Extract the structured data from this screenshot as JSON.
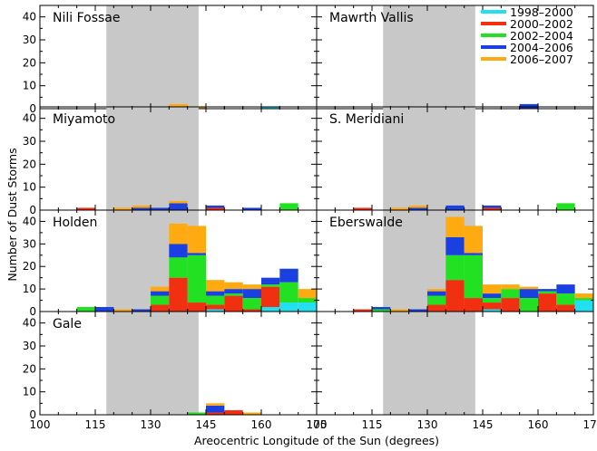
{
  "chart_data": {
    "type": "bar",
    "stacked": true,
    "xlabel": "Areocentric Longitude of the Sun (degrees)",
    "ylabel": "Number of Dust Storms",
    "xlim": [
      100,
      175
    ],
    "ylim": [
      0,
      45
    ],
    "bin_width": 5,
    "x_ticks": [
      100,
      115,
      130,
      145,
      160,
      175
    ],
    "x_tick_labels_left": [
      "100",
      "115",
      "130",
      "145",
      "160",
      "175"
    ],
    "x_tick_labels_right": [
      "100",
      "115",
      "130",
      "145",
      "160",
      "175"
    ],
    "y_ticks": [
      0,
      10,
      20,
      30,
      40
    ],
    "shaded_band": [
      118,
      143
    ],
    "shaded_color": "#c8c8c8",
    "legend": {
      "placement": "top-right",
      "entries": [
        {
          "name": "1998–2000",
          "color": "#22e0f0"
        },
        {
          "name": "2000–2002",
          "color": "#f03010"
        },
        {
          "name": "2002–2004",
          "color": "#22e022"
        },
        {
          "name": "2004–2006",
          "color": "#1a40e0"
        },
        {
          "name": "2006–2007",
          "color": "#ffaa10"
        }
      ]
    },
    "panels": [
      {
        "title": "Nili Fossae",
        "col": 0,
        "row": 0,
        "bins": [
          {
            "x0": 135,
            "x1": 140,
            "counts": [
              0,
              1,
              0,
              0,
              1
            ]
          },
          {
            "x0": 140,
            "x1": 145,
            "counts": [
              0,
              0,
              0,
              0,
              1
            ]
          },
          {
            "x0": 160,
            "x1": 165,
            "counts": [
              1,
              0,
              0,
              0,
              0
            ]
          }
        ]
      },
      {
        "title": "Mawrth Vallis",
        "col": 1,
        "row": 0,
        "bins": [
          {
            "x0": 125,
            "x1": 130,
            "counts": [
              0,
              0,
              0,
              0,
              1
            ]
          },
          {
            "x0": 155,
            "x1": 160,
            "counts": [
              0,
              0,
              0,
              2,
              0
            ]
          }
        ]
      },
      {
        "title": "Miyamoto",
        "col": 0,
        "row": 1,
        "bins": [
          {
            "x0": 110,
            "x1": 115,
            "counts": [
              0,
              1,
              0,
              0,
              0
            ]
          },
          {
            "x0": 120,
            "x1": 125,
            "counts": [
              0,
              0,
              0,
              0,
              1
            ]
          },
          {
            "x0": 125,
            "x1": 130,
            "counts": [
              0,
              0,
              0,
              1,
              1
            ]
          },
          {
            "x0": 130,
            "x1": 135,
            "counts": [
              0,
              0,
              0,
              1,
              0
            ]
          },
          {
            "x0": 135,
            "x1": 140,
            "counts": [
              0,
              0,
              0,
              3,
              1
            ]
          },
          {
            "x0": 145,
            "x1": 150,
            "counts": [
              0,
              1,
              0,
              1,
              0
            ]
          },
          {
            "x0": 155,
            "x1": 160,
            "counts": [
              0,
              0,
              0,
              1,
              0
            ]
          },
          {
            "x0": 165,
            "x1": 170,
            "counts": [
              0,
              0,
              3,
              0,
              0
            ]
          }
        ]
      },
      {
        "title": "S. Meridiani",
        "col": 1,
        "row": 1,
        "bins": [
          {
            "x0": 110,
            "x1": 115,
            "counts": [
              0,
              1,
              0,
              0,
              0
            ]
          },
          {
            "x0": 120,
            "x1": 125,
            "counts": [
              0,
              0,
              0,
              0,
              1
            ]
          },
          {
            "x0": 125,
            "x1": 130,
            "counts": [
              0,
              0,
              0,
              1,
              1
            ]
          },
          {
            "x0": 135,
            "x1": 140,
            "counts": [
              0,
              0,
              0,
              2,
              0
            ]
          },
          {
            "x0": 145,
            "x1": 150,
            "counts": [
              0,
              1,
              0,
              1,
              0
            ]
          },
          {
            "x0": 165,
            "x1": 170,
            "counts": [
              0,
              0,
              3,
              0,
              0
            ]
          }
        ]
      },
      {
        "title": "Holden",
        "col": 0,
        "row": 2,
        "bins": [
          {
            "x0": 110,
            "x1": 115,
            "counts": [
              0,
              0,
              2,
              0,
              0
            ]
          },
          {
            "x0": 115,
            "x1": 120,
            "counts": [
              0,
              0,
              0,
              2,
              0
            ]
          },
          {
            "x0": 120,
            "x1": 125,
            "counts": [
              0,
              0,
              0,
              0,
              1
            ]
          },
          {
            "x0": 125,
            "x1": 130,
            "counts": [
              0,
              0,
              0,
              1,
              0
            ]
          },
          {
            "x0": 130,
            "x1": 135,
            "counts": [
              0,
              3,
              4,
              2,
              2
            ]
          },
          {
            "x0": 135,
            "x1": 140,
            "counts": [
              0,
              15,
              9,
              6,
              9
            ]
          },
          {
            "x0": 140,
            "x1": 145,
            "counts": [
              0,
              4,
              21,
              1,
              12
            ]
          },
          {
            "x0": 145,
            "x1": 150,
            "counts": [
              1,
              2,
              4,
              2,
              5
            ]
          },
          {
            "x0": 150,
            "x1": 155,
            "counts": [
              0,
              7,
              1,
              2,
              3
            ]
          },
          {
            "x0": 155,
            "x1": 160,
            "counts": [
              0,
              1,
              5,
              4,
              2
            ]
          },
          {
            "x0": 160,
            "x1": 165,
            "counts": [
              2,
              9,
              1,
              3,
              0
            ]
          },
          {
            "x0": 165,
            "x1": 170,
            "counts": [
              4,
              0,
              9,
              6,
              0
            ]
          },
          {
            "x0": 170,
            "x1": 175,
            "counts": [
              4,
              0,
              2,
              0,
              4
            ]
          }
        ]
      },
      {
        "title": "Eberswalde",
        "col": 1,
        "row": 2,
        "bins": [
          {
            "x0": 110,
            "x1": 115,
            "counts": [
              0,
              1,
              0,
              0,
              0
            ]
          },
          {
            "x0": 115,
            "x1": 120,
            "counts": [
              0,
              0,
              1,
              1,
              0
            ]
          },
          {
            "x0": 120,
            "x1": 125,
            "counts": [
              0,
              0,
              0,
              0,
              1
            ]
          },
          {
            "x0": 125,
            "x1": 130,
            "counts": [
              0,
              0,
              0,
              1,
              0
            ]
          },
          {
            "x0": 130,
            "x1": 135,
            "counts": [
              0,
              3,
              4,
              2,
              1
            ]
          },
          {
            "x0": 135,
            "x1": 140,
            "counts": [
              0,
              14,
              11,
              8,
              9
            ]
          },
          {
            "x0": 140,
            "x1": 145,
            "counts": [
              0,
              6,
              19,
              1,
              12
            ]
          },
          {
            "x0": 145,
            "x1": 150,
            "counts": [
              1,
              3,
              2,
              2,
              4
            ]
          },
          {
            "x0": 150,
            "x1": 155,
            "counts": [
              0,
              6,
              4,
              0,
              2
            ]
          },
          {
            "x0": 155,
            "x1": 160,
            "counts": [
              0,
              0,
              6,
              4,
              1
            ]
          },
          {
            "x0": 160,
            "x1": 165,
            "counts": [
              0,
              8,
              1,
              1,
              0
            ]
          },
          {
            "x0": 165,
            "x1": 170,
            "counts": [
              0,
              3,
              5,
              4,
              0
            ]
          },
          {
            "x0": 170,
            "x1": 175,
            "counts": [
              5,
              0,
              1,
              0,
              2
            ]
          }
        ]
      },
      {
        "title": "Gale",
        "col": 0,
        "row": 3,
        "bins": [
          {
            "x0": 140,
            "x1": 145,
            "counts": [
              0,
              0,
              1,
              0,
              0
            ]
          },
          {
            "x0": 145,
            "x1": 150,
            "counts": [
              0,
              1,
              0,
              3,
              1
            ]
          },
          {
            "x0": 150,
            "x1": 155,
            "counts": [
              0,
              2,
              0,
              0,
              0
            ]
          },
          {
            "x0": 155,
            "x1": 160,
            "counts": [
              0,
              0,
              0,
              0,
              1
            ]
          }
        ]
      },
      {
        "title": "",
        "col": 1,
        "row": 3,
        "bins": []
      }
    ]
  }
}
